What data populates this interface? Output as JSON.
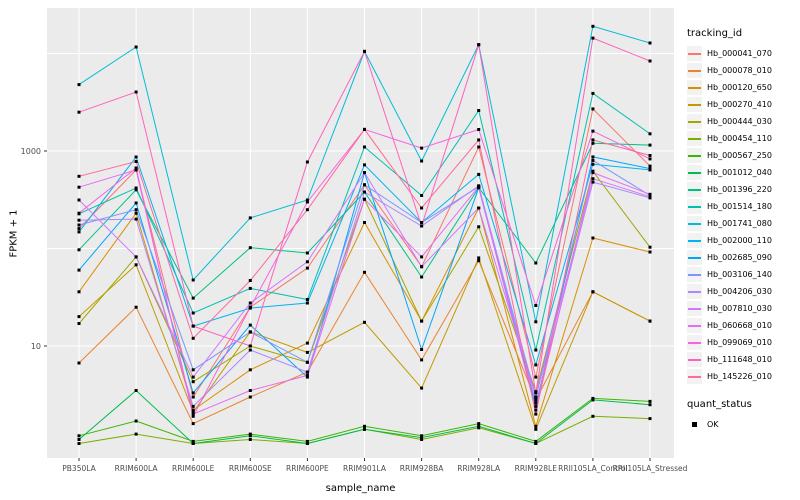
{
  "chart_data": {
    "type": "line",
    "title": "",
    "xlabel": "sample_name",
    "ylabel": "FPKM + 1",
    "y_scale": "log10",
    "ylim": [
      0.75,
      29000
    ],
    "grid": true,
    "panel_bg": "#EBEBEB",
    "grid_color": "#FFFFFF",
    "point_shape": "square",
    "point_color": "#000000",
    "y_gridlines": [
      10,
      100,
      1000,
      10000
    ],
    "y_tick_labels": [
      "10",
      "1000"
    ],
    "y_tick_values": [
      10,
      1000
    ],
    "categories": [
      "PB350LA",
      "RRIM600LA",
      "RRIM600LE",
      "RRIM600SE",
      "RRIM600PE",
      "RRIM901LA",
      "RRIM928BA",
      "RRIM928LA",
      "RRIM928LE",
      "RRII105LA_Control",
      "RRII105LA_Stressed"
    ],
    "legend_title": "tracking_id",
    "legend2_title": "quant_status",
    "legend2_items": [
      {
        "label": "OK",
        "shape": "square",
        "color": "#000000"
      }
    ],
    "series": [
      {
        "name": "Hb_000041_070",
        "color": "#F8766D",
        "values": [
          160,
          640,
          3.0,
          25,
          63,
          450,
          65,
          1100,
          4.8,
          2700,
          700
        ]
      },
      {
        "name": "Hb_000078_010",
        "color": "#EA8331",
        "values": [
          6.7,
          25,
          1.6,
          3.0,
          5.4,
          57,
          7.2,
          75,
          2.8,
          36,
          18
        ]
      },
      {
        "name": "Hb_000120_650",
        "color": "#D89000",
        "values": [
          36,
          230,
          2.2,
          5.7,
          10.7,
          185,
          18,
          260,
          1.5,
          128,
          92
        ]
      },
      {
        "name": "Hb_000270_410",
        "color": "#C09B00",
        "values": [
          20,
          68,
          2.1,
          14,
          8.6,
          17.5,
          3.7,
          80,
          1.4,
          36,
          18
        ]
      },
      {
        "name": "Hb_000444_030",
        "color": "#A3A500",
        "values": [
          17,
          82,
          4.3,
          10,
          6.8,
          320,
          18,
          167,
          3.4,
          620,
          103
        ]
      },
      {
        "name": "Hb_000454_110",
        "color": "#7CAE00",
        "values": [
          1.0,
          1.25,
          1.0,
          1.1,
          1.0,
          1.4,
          1.1,
          1.45,
          1.0,
          1.9,
          1.8
        ]
      },
      {
        "name": "Hb_000567_250",
        "color": "#39B600",
        "values": [
          1.2,
          1.7,
          1.05,
          1.25,
          1.05,
          1.5,
          1.2,
          1.6,
          1.05,
          2.9,
          2.7
        ]
      },
      {
        "name": "Hb_001012_040",
        "color": "#00BB4E",
        "values": [
          1.1,
          3.5,
          1.0,
          1.2,
          1.0,
          1.4,
          1.15,
          1.5,
          1.0,
          2.8,
          2.5
        ]
      },
      {
        "name": "Hb_001396_220",
        "color": "#00C087",
        "values": [
          97,
          400,
          31,
          102,
          90,
          380,
          51,
          420,
          71,
          1200,
          1150
        ]
      },
      {
        "name": "Hb_001514_180",
        "color": "#00C0AF",
        "values": [
          227,
          417,
          21.8,
          39,
          30,
          1100,
          350,
          2600,
          9.1,
          3900,
          1500
        ]
      },
      {
        "name": "Hb_001741_080",
        "color": "#00BCD8",
        "values": [
          4800,
          11650,
          47.5,
          206,
          314,
          10500,
          790,
          12300,
          17.7,
          19000,
          12800
        ]
      },
      {
        "name": "Hb_002000_110",
        "color": "#00B3F2",
        "values": [
          148,
          867,
          16,
          24.5,
          27.6,
          720,
          185,
          575,
          6.4,
          730,
          640
        ]
      },
      {
        "name": "Hb_002685_090",
        "color": "#00A5FF",
        "values": [
          60,
          293,
          3.3,
          16.4,
          4.8,
          600,
          9.2,
          420,
          2.4,
          870,
          660
        ]
      },
      {
        "name": "Hb_003106_140",
        "color": "#7997FF",
        "values": [
          174,
          250,
          5.7,
          13.9,
          6.8,
          450,
          185,
          430,
          3.0,
          800,
          350
        ]
      },
      {
        "name": "Hb_004206_030",
        "color": "#AE87FF",
        "values": [
          195,
          200,
          2.4,
          9.1,
          5.4,
          380,
          170,
          440,
          2.6,
          480,
          330
        ]
      },
      {
        "name": "Hb_007810_030",
        "color": "#CF78FF",
        "values": [
          314,
          82,
          4.8,
          27.6,
          73,
          600,
          65,
          260,
          3.0,
          520,
          340
        ]
      },
      {
        "name": "Hb_060668_010",
        "color": "#E76BF3",
        "values": [
          425,
          640,
          2.0,
          3.5,
          5.0,
          320,
          82,
          430,
          2.2,
          600,
          360
        ]
      },
      {
        "name": "Hb_099069_010",
        "color": "#F763E0",
        "values": [
          230,
          670,
          1.9,
          25,
          300,
          1665,
          1070,
          1660,
          26,
          1600,
          830
        ]
      },
      {
        "name": "Hb_111648_010",
        "color": "#FF62BC",
        "values": [
          2500,
          4030,
          16,
          10,
          771,
          10500,
          170,
          12300,
          3.3,
          14400,
          8380
        ]
      },
      {
        "name": "Hb_145226_010",
        "color": "#FF6A98",
        "values": [
          550,
          780,
          12,
          47,
          250,
          1665,
          260,
          1300,
          2.0,
          1300,
          900
        ]
      }
    ]
  }
}
